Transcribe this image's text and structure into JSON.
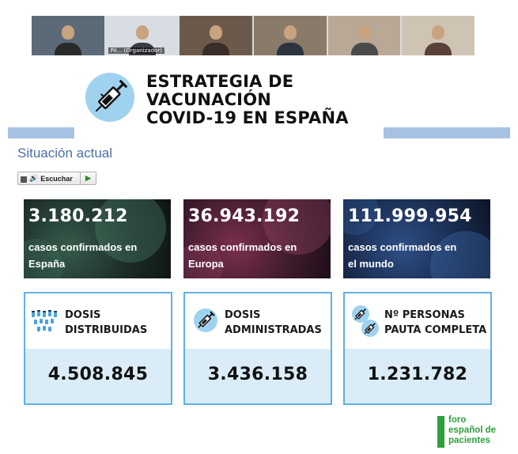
{
  "video_strip": {
    "participants": [
      {
        "name": "",
        "bg": "#5c6a78",
        "shirt": "#2a2a2a"
      },
      {
        "name": "Pil... (Organizador)",
        "bg": "#d8dde3",
        "shirt": "#3b3b4a"
      },
      {
        "name": "",
        "bg": "#6b5a4c",
        "shirt": "#3a2c26"
      },
      {
        "name": "",
        "bg": "#8a7a6a",
        "shirt": "#2c3440"
      },
      {
        "name": "",
        "bg": "#b9a896",
        "shirt": "#4a4a4a"
      },
      {
        "name": "",
        "bg": "#cfc3b3",
        "shirt": "#5a4038"
      }
    ]
  },
  "header": {
    "title_lines": [
      "ESTRATEGIA DE",
      "VACUNACIÓN",
      "COVID-19 EN ESPAÑA"
    ],
    "subtitle": "Situación actual",
    "listen_label": "Escuchar",
    "icon": "syringe-icon"
  },
  "cases": [
    {
      "number": "3.180.212",
      "line1": "casos confirmados en",
      "line2": "España"
    },
    {
      "number": "36.943.192",
      "line1": "casos confirmados en",
      "line2": "Europa"
    },
    {
      "number": "111.999.954",
      "line1": "casos confirmados en",
      "line2": "el mundo"
    }
  ],
  "doses": [
    {
      "line1": "DOSIS",
      "line2": "DISTRIBUIDAS",
      "value": "4.508.845",
      "icon": "vials-icon"
    },
    {
      "line1": "DOSIS",
      "line2": "ADMINISTRADAS",
      "value": "3.436.158",
      "icon": "syringe-icon"
    },
    {
      "line1": "Nº PERSONAS",
      "line2": "PAUTA COMPLETA",
      "value": "1.231.782",
      "icon": "two-syringes-icon"
    }
  ],
  "logo": {
    "lines": [
      "foro",
      "español de",
      "pacientes"
    ],
    "color": "#2e9e3e"
  },
  "colors": {
    "accent_blue": "#5fb0e8",
    "band": "#a7c2e2",
    "subtitle": "#4a6fa5",
    "dose_bg": "#d9ecf8"
  }
}
